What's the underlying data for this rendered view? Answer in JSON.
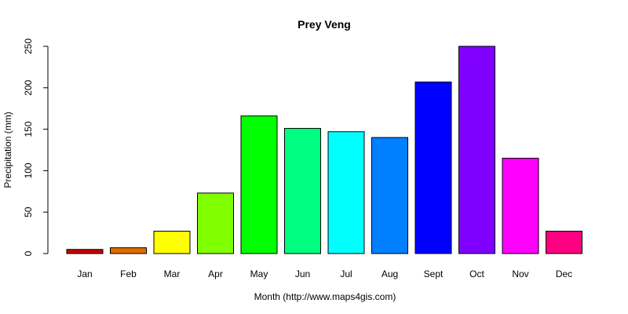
{
  "chart_data": {
    "type": "bar",
    "title": "Prey Veng",
    "xlabel": "Month (http://www.maps4gis.com)",
    "ylabel": "Precipitation (mm)",
    "ylim": [
      0,
      250
    ],
    "yticks": [
      "0",
      "50",
      "100",
      "150",
      "200",
      "250"
    ],
    "grid": false,
    "categories": [
      "Jan",
      "Feb",
      "Mar",
      "Apr",
      "May",
      "Jun",
      "Jul",
      "Aug",
      "Sept",
      "Oct",
      "Nov",
      "Dec"
    ],
    "values": [
      5,
      7,
      27,
      73,
      166,
      151,
      147,
      140,
      207,
      250,
      115,
      27
    ],
    "colors": [
      "#CC0000",
      "#E06C00",
      "#FFFF00",
      "#80FF00",
      "#00FF00",
      "#00FF80",
      "#00FFFF",
      "#0080FF",
      "#0000FF",
      "#8000FF",
      "#FF00FF",
      "#FF0080"
    ]
  }
}
